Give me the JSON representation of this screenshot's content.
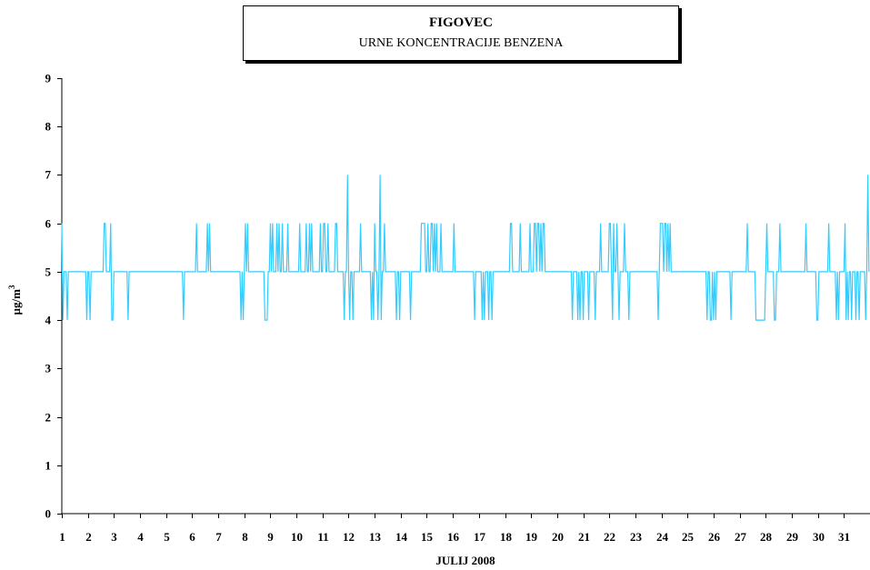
{
  "chart_data": {
    "type": "line",
    "title": "FIGOVEC",
    "subtitle": "URNE KONCENTRACIJE BENZENA",
    "xlabel": "JULIJ 2008",
    "ylabel": "µg/m",
    "ylabel_superscript": "3",
    "xlim": [
      1,
      31.999
    ],
    "ylim": [
      0,
      9
    ],
    "yticks": [
      0,
      1,
      2,
      3,
      4,
      5,
      6,
      7,
      8,
      9
    ],
    "xticks": [
      1,
      2,
      3,
      4,
      5,
      6,
      7,
      8,
      9,
      10,
      11,
      12,
      13,
      14,
      15,
      16,
      17,
      18,
      19,
      20,
      21,
      22,
      23,
      24,
      25,
      26,
      27,
      28,
      29,
      30,
      31
    ],
    "grid": false,
    "legend": "none",
    "series_color": "#33CCFF",
    "day_hourly": [
      [
        6,
        4,
        5,
        5,
        5,
        4,
        5,
        5,
        5,
        5,
        5,
        5,
        5,
        5,
        5,
        5,
        5,
        5,
        5,
        5,
        5,
        5,
        5,
        4
      ],
      [
        5,
        5,
        4,
        5,
        5,
        5,
        5,
        5,
        5,
        5,
        5,
        5,
        5,
        5,
        5,
        6,
        6,
        5,
        5,
        5,
        5,
        6,
        4,
        4
      ],
      [
        5,
        5,
        5,
        5,
        5,
        5,
        5,
        5,
        5,
        5,
        5,
        5,
        5,
        4,
        5,
        5,
        5,
        5,
        5,
        5,
        5,
        5,
        5,
        5
      ],
      [
        5,
        5,
        5,
        5,
        5,
        5,
        5,
        5,
        5,
        5,
        5,
        5,
        5,
        5,
        5,
        5,
        5,
        5,
        5,
        5,
        5,
        5,
        5,
        5
      ],
      [
        5,
        5,
        5,
        5,
        5,
        5,
        5,
        5,
        5,
        5,
        5,
        5,
        5,
        5,
        5,
        5,
        4,
        5,
        5,
        5,
        5,
        5,
        5,
        5
      ],
      [
        5,
        5,
        5,
        5,
        6,
        5,
        5,
        5,
        5,
        5,
        5,
        5,
        5,
        5,
        6,
        5,
        6,
        5,
        5,
        5,
        5,
        5,
        5,
        5
      ],
      [
        5,
        5,
        5,
        5,
        5,
        5,
        5,
        5,
        5,
        5,
        5,
        5,
        5,
        5,
        5,
        5,
        5,
        5,
        5,
        5,
        5,
        4,
        5,
        4
      ],
      [
        5,
        6,
        5,
        6,
        5,
        5,
        5,
        5,
        5,
        5,
        5,
        5,
        5,
        5,
        5,
        5,
        5,
        5,
        5,
        4,
        4,
        4,
        5,
        5
      ],
      [
        6,
        5,
        6,
        5,
        5,
        5,
        6,
        5,
        6,
        5,
        5,
        6,
        5,
        5,
        5,
        5,
        6,
        5,
        5,
        5,
        5,
        5,
        5,
        5
      ],
      [
        5,
        5,
        5,
        6,
        5,
        5,
        5,
        5,
        5,
        6,
        5,
        5,
        6,
        5,
        6,
        5,
        5,
        5,
        5,
        5,
        5,
        5,
        6,
        5
      ],
      [
        5,
        6,
        6,
        5,
        5,
        6,
        5,
        5,
        5,
        5,
        5,
        5,
        6,
        6,
        5,
        5,
        5,
        5,
        5,
        5,
        4,
        5,
        5,
        7
      ],
      [
        5,
        4,
        5,
        5,
        4,
        5,
        5,
        5,
        5,
        5,
        5,
        6,
        5,
        5,
        5,
        5,
        5,
        5,
        5,
        5,
        5,
        4,
        5,
        4
      ],
      [
        6,
        5,
        5,
        4,
        5,
        7,
        4,
        5,
        5,
        6,
        5,
        5,
        5,
        5,
        5,
        5,
        5,
        5,
        5,
        5,
        4,
        5,
        5,
        4
      ],
      [
        5,
        5,
        5,
        5,
        5,
        5,
        5,
        5,
        5,
        4,
        5,
        5,
        5,
        5,
        5,
        5,
        5,
        5,
        5,
        6,
        6,
        6,
        6,
        5
      ],
      [
        5,
        6,
        5,
        5,
        6,
        6,
        5,
        6,
        5,
        6,
        5,
        5,
        5,
        6,
        5,
        5,
        5,
        5,
        5,
        5,
        5,
        5,
        5,
        5
      ],
      [
        5,
        6,
        5,
        5,
        5,
        5,
        5,
        5,
        5,
        5,
        5,
        5,
        5,
        5,
        5,
        5,
        5,
        5,
        5,
        5,
        4,
        5,
        5,
        5
      ],
      [
        5,
        5,
        5,
        4,
        5,
        4,
        5,
        5,
        5,
        4,
        5,
        5,
        4,
        5,
        5,
        5,
        5,
        5,
        5,
        5,
        5,
        5,
        5,
        5
      ],
      [
        5,
        5,
        5,
        5,
        5,
        6,
        6,
        5,
        5,
        5,
        5,
        5,
        5,
        5,
        6,
        5,
        5,
        5,
        5,
        5,
        5,
        5,
        5,
        6
      ],
      [
        5,
        5,
        5,
        6,
        6,
        5,
        6,
        6,
        5,
        6,
        5,
        6,
        6,
        5,
        5,
        5,
        5,
        5,
        5,
        5,
        5,
        5,
        5,
        5
      ],
      [
        5,
        5,
        5,
        5,
        5,
        5,
        5,
        5,
        5,
        5,
        5,
        5,
        5,
        5,
        4,
        5,
        5,
        5,
        5,
        4,
        5,
        4,
        5,
        5
      ],
      [
        4,
        5,
        5,
        5,
        5,
        4,
        5,
        5,
        5,
        5,
        5,
        4,
        5,
        5,
        5,
        5,
        6,
        5,
        5,
        5,
        5,
        5,
        5,
        5
      ],
      [
        6,
        6,
        5,
        4,
        6,
        5,
        5,
        6,
        5,
        4,
        5,
        5,
        5,
        5,
        6,
        5,
        5,
        5,
        4,
        5,
        5,
        5,
        5,
        5
      ],
      [
        5,
        5,
        5,
        5,
        5,
        5,
        5,
        5,
        5,
        5,
        5,
        5,
        5,
        5,
        5,
        5,
        5,
        5,
        5,
        5,
        5,
        4,
        5,
        6
      ],
      [
        6,
        6,
        5,
        6,
        6,
        5,
        6,
        5,
        6,
        5,
        5,
        5,
        5,
        5,
        5,
        5,
        5,
        5,
        5,
        5,
        5,
        5,
        5,
        5
      ],
      [
        5,
        5,
        5,
        5,
        5,
        5,
        5,
        5,
        5,
        5,
        5,
        5,
        5,
        5,
        5,
        5,
        5,
        5,
        4,
        5,
        5,
        4,
        4,
        5
      ],
      [
        4,
        5,
        4,
        5,
        5,
        5,
        5,
        5,
        5,
        5,
        5,
        5,
        5,
        5,
        5,
        5,
        4,
        5,
        5,
        5,
        5,
        5,
        5,
        5
      ],
      [
        5,
        5,
        5,
        5,
        5,
        5,
        5,
        6,
        5,
        5,
        5,
        5,
        5,
        5,
        5,
        4,
        4,
        4,
        4,
        4,
        4,
        4,
        4,
        4
      ],
      [
        5,
        6,
        5,
        5,
        5,
        5,
        5,
        5,
        4,
        4,
        5,
        5,
        5,
        6,
        5,
        5,
        5,
        5,
        5,
        5,
        5,
        5,
        5,
        5
      ],
      [
        5,
        5,
        5,
        5,
        5,
        5,
        5,
        5,
        5,
        5,
        5,
        5,
        5,
        6,
        5,
        5,
        5,
        5,
        5,
        5,
        5,
        5,
        5,
        4
      ],
      [
        4,
        5,
        5,
        5,
        5,
        5,
        5,
        5,
        5,
        5,
        6,
        5,
        5,
        5,
        5,
        5,
        5,
        4,
        5,
        4,
        5,
        5,
        5,
        5
      ],
      [
        5,
        6,
        4,
        5,
        4,
        5,
        5,
        4,
        5,
        5,
        5,
        4,
        5,
        5,
        4,
        5,
        5,
        5,
        5,
        5,
        4,
        5,
        7,
        5
      ]
    ]
  }
}
